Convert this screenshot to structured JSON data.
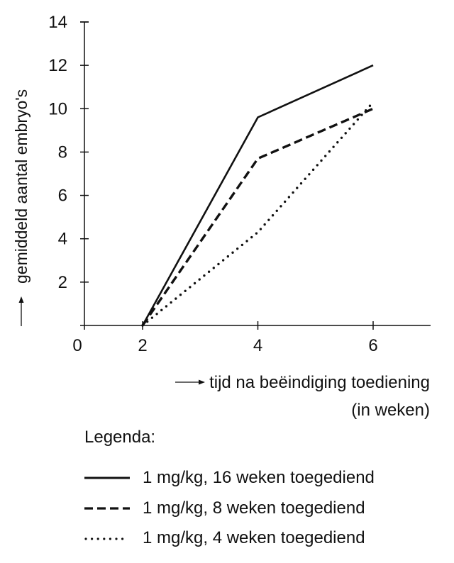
{
  "chart_data": {
    "type": "line",
    "title": "",
    "xlabel": "tijd na beëindiging toediening (in weken)",
    "xlabel_lines": [
      "tijd na beëindiging toediening",
      "(in weken)"
    ],
    "ylabel": "gemiddeld aantal embryo's",
    "x_ticks": [
      "0",
      "2",
      "4",
      "6"
    ],
    "y_ticks": [
      2,
      4,
      6,
      8,
      10,
      12,
      14
    ],
    "origin_label": "0",
    "ylim": [
      0,
      14
    ],
    "xlim": [
      0,
      7
    ],
    "grid": false,
    "legend_position": "below",
    "x": [
      2,
      4,
      6
    ],
    "series": [
      {
        "name": "1 mg/kg, 16 weken toegediend",
        "style": "solid",
        "values": [
          0,
          9.6,
          12.0
        ]
      },
      {
        "name": "1 mg/kg, 8 weken toegediend",
        "style": "dashed",
        "values": [
          0,
          7.7,
          10.0
        ]
      },
      {
        "name": "1 mg/kg, 4 weken toegediend",
        "style": "dotted",
        "values": [
          0,
          4.3,
          10.3
        ]
      }
    ]
  },
  "legend": {
    "title": "Legenda:",
    "items": [
      {
        "label": "1 mg/kg, 16 weken toegediend",
        "style": "solid"
      },
      {
        "label": "1 mg/kg, 8 weken toegediend",
        "style": "dashed"
      },
      {
        "label": "1 mg/kg, 4 weken toegediend",
        "style": "dotted"
      }
    ]
  },
  "colors": {
    "ink": "#111111",
    "background": "#ffffff"
  }
}
